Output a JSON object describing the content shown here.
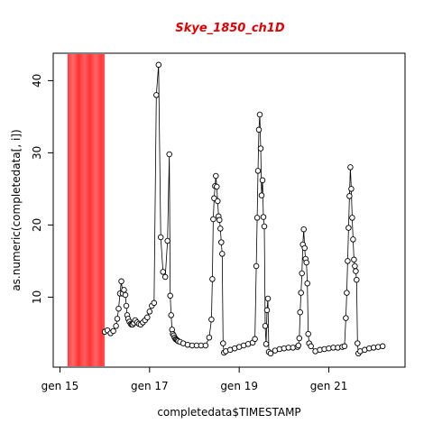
{
  "chart_data": {
    "type": "line",
    "title": "Skye_1850_ch1D",
    "title_color": "#e30000",
    "xlabel": "completedata$TIMESTAMP",
    "ylabel": "as.numeric(completedata[, i])",
    "x_unit": "days (gen 15 = 15)",
    "xlim": [
      14.85,
      22.7
    ],
    "ylim": [
      0.3,
      43.8
    ],
    "x_ticks": [
      {
        "value": 15,
        "label": "gen 15"
      },
      {
        "value": 17,
        "label": "gen 17"
      },
      {
        "value": 19,
        "label": "gen 19"
      },
      {
        "value": 21,
        "label": "gen 21"
      }
    ],
    "y_ticks": [
      {
        "value": 10,
        "label": "10"
      },
      {
        "value": 20,
        "label": "20"
      },
      {
        "value": 30,
        "label": "30"
      },
      {
        "value": 40,
        "label": "40"
      }
    ],
    "highlight": {
      "x_start": 15.17,
      "x_end": 16.0,
      "color": "#ff3b3b"
    },
    "grid": false,
    "marker": "open-circle",
    "line_color": "#000000",
    "series": [
      {
        "x": [
          16.0,
          16.06,
          16.13,
          16.19,
          16.25,
          16.28,
          16.31,
          16.34,
          16.37,
          16.4,
          16.43,
          16.46,
          16.48,
          16.5,
          16.52,
          16.55,
          16.58,
          16.6,
          16.62,
          16.65,
          16.68,
          16.72,
          16.76,
          16.8,
          16.85,
          16.9,
          16.95,
          17.0,
          17.05,
          17.1,
          17.15,
          17.2,
          17.25,
          17.3,
          17.35,
          17.4,
          17.44,
          17.46,
          17.48,
          17.5,
          17.52,
          17.54,
          17.56,
          17.58,
          17.6,
          17.62,
          17.64,
          17.68,
          17.75,
          17.85,
          17.95,
          18.05,
          18.15,
          18.25,
          18.33,
          18.38,
          18.4,
          18.42,
          18.44,
          18.46,
          18.48,
          18.5,
          18.52,
          18.54,
          18.56,
          18.58,
          18.6,
          18.62,
          18.64,
          18.66,
          18.7,
          18.8,
          18.9,
          19.0,
          19.1,
          19.2,
          19.3,
          19.35,
          19.38,
          19.4,
          19.42,
          19.44,
          19.46,
          19.48,
          19.5,
          19.52,
          19.54,
          19.56,
          19.58,
          19.6,
          19.62,
          19.64,
          19.66,
          19.7,
          19.8,
          19.9,
          20.0,
          20.1,
          20.2,
          20.3,
          20.32,
          20.34,
          20.36,
          20.38,
          20.4,
          20.42,
          20.44,
          20.46,
          20.48,
          20.5,
          20.52,
          20.54,
          20.56,
          20.6,
          20.7,
          20.8,
          20.9,
          21.0,
          21.1,
          21.2,
          21.3,
          21.35,
          21.38,
          21.4,
          21.42,
          21.44,
          21.46,
          21.48,
          21.5,
          21.52,
          21.54,
          21.56,
          21.58,
          21.6,
          21.62,
          21.64,
          21.66,
          21.7,
          21.8,
          21.9,
          22.0,
          22.1,
          22.2
        ],
        "y": [
          5.2,
          5.4,
          5.0,
          5.3,
          6.0,
          7.0,
          8.4,
          10.5,
          12.2,
          10.5,
          11.0,
          10.3,
          8.8,
          7.5,
          7.0,
          6.6,
          6.3,
          6.2,
          6.2,
          6.4,
          6.8,
          6.5,
          6.3,
          6.2,
          6.5,
          6.8,
          7.2,
          8.0,
          8.8,
          9.2,
          38.0,
          42.2,
          18.3,
          13.5,
          12.8,
          17.8,
          29.8,
          10.2,
          7.5,
          5.5,
          4.9,
          4.7,
          4.4,
          4.2,
          4.1,
          4.0,
          3.9,
          3.8,
          3.6,
          3.4,
          3.3,
          3.3,
          3.3,
          3.3,
          4.4,
          6.9,
          12.5,
          20.8,
          23.7,
          25.4,
          26.8,
          25.3,
          23.3,
          21.2,
          20.7,
          19.5,
          17.6,
          16.0,
          3.6,
          2.3,
          2.5,
          2.7,
          2.9,
          3.1,
          3.3,
          3.5,
          3.7,
          4.2,
          14.3,
          21.0,
          27.5,
          33.2,
          35.3,
          30.6,
          24.1,
          26.2,
          21.1,
          19.8,
          6.0,
          3.5,
          8.2,
          9.8,
          2.4,
          2.2,
          2.6,
          2.8,
          2.9,
          3.0,
          3.0,
          3.1,
          3.3,
          4.3,
          7.9,
          10.6,
          13.3,
          17.3,
          19.4,
          16.8,
          15.3,
          14.8,
          11.9,
          4.9,
          3.6,
          3.2,
          2.5,
          2.7,
          2.8,
          2.9,
          3.0,
          3.0,
          3.1,
          3.2,
          7.1,
          10.6,
          15.0,
          19.6,
          24.0,
          28.0,
          25.0,
          21.0,
          18.0,
          15.2,
          14.3,
          13.6,
          12.4,
          3.6,
          2.2,
          2.5,
          2.7,
          2.9,
          3.0,
          3.1,
          3.2
        ]
      }
    ]
  }
}
